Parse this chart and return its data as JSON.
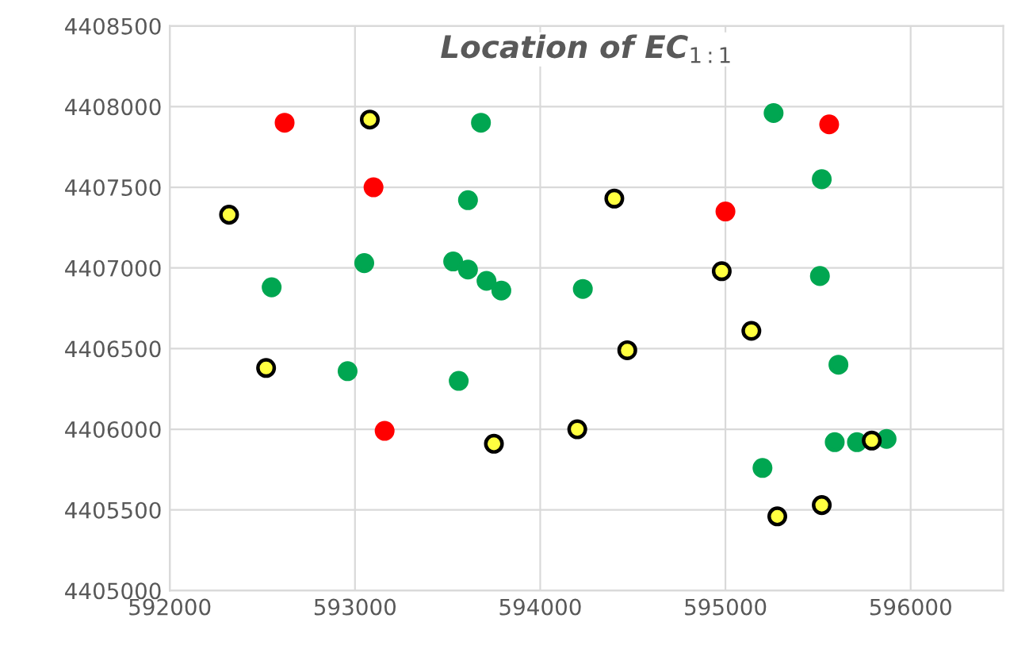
{
  "chart_data": {
    "type": "scatter",
    "title": "Location of EC$_{1:1}$",
    "xlim": [
      592000,
      596500
    ],
    "xticks": [
      592000,
      593000,
      594000,
      595000,
      596000
    ],
    "ylim": [
      4405000,
      4408500
    ],
    "yticks": [
      4405000,
      4405500,
      4406000,
      4406500,
      4407000,
      4407500,
      4408000,
      4408500
    ],
    "grid": true,
    "marker": "circle",
    "series": [
      {
        "color": "#00a651",
        "x": [
          593680,
          593610,
          593050,
          592550,
          593530,
          593610,
          593710,
          593790,
          592960,
          593560,
          594230,
          595260,
          595520,
          595510,
          595610,
          595590,
          595710,
          595870,
          595200
        ],
        "values": [
          4407900,
          4407420,
          4407030,
          4406880,
          4407040,
          4406990,
          4406920,
          4406860,
          4406360,
          4406300,
          4406870,
          4407960,
          4407550,
          4406950,
          4406400,
          4405920,
          4405920,
          4405940,
          4405760
        ]
      },
      {
        "color": "#ff0000",
        "x": [
          592620,
          593100,
          593160,
          595560,
          595000
        ],
        "values": [
          4407900,
          4407500,
          4405990,
          4407890,
          4407350
        ]
      },
      {
        "color": "#ffff40",
        "x": [
          593080,
          592320,
          594400,
          594980,
          595140,
          594470,
          592520,
          593750,
          594200,
          595790,
          595280,
          595520
        ],
        "values": [
          4407920,
          4407330,
          4407430,
          4406980,
          4406610,
          4406490,
          4406380,
          4405910,
          4406000,
          4405930,
          4405460,
          4405530
        ]
      }
    ]
  }
}
